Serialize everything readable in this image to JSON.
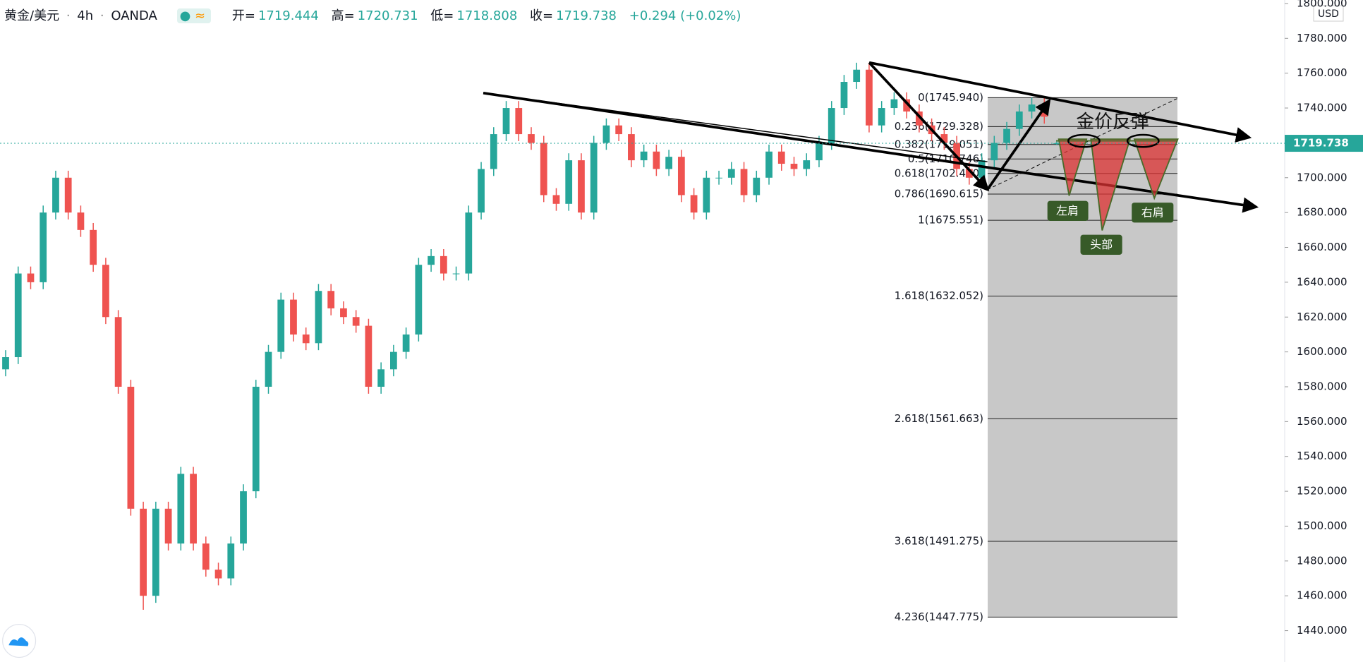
{
  "header": {
    "symbol": "黄金/美元",
    "interval": "4h",
    "exchange": "OANDA",
    "open_label": "开=",
    "high_label": "高=",
    "low_label": "低=",
    "close_label": "收=",
    "change": "+0.294 (+0.02%)"
  },
  "chart_data": {
    "type": "candlestick",
    "currency": "USD",
    "colors": {
      "up": "#26a69a",
      "down": "#ef5350"
    },
    "series": {
      "open": [
        1590,
        1597,
        1645,
        1640,
        1680,
        1700,
        1680,
        1670,
        1650,
        1620,
        1580,
        1510,
        1460,
        1510,
        1490,
        1530,
        1490,
        1475,
        1470,
        1490,
        1520,
        1580,
        1600,
        1630,
        1610,
        1605,
        1635,
        1625,
        1620,
        1615,
        1580,
        1590,
        1600,
        1610,
        1650,
        1655,
        1645,
        1645,
        1680,
        1705,
        1725,
        1740,
        1725,
        1720,
        1690,
        1685,
        1710,
        1680,
        1720,
        1730,
        1725,
        1710,
        1715,
        1705,
        1712,
        1690,
        1680,
        1700,
        1700,
        1705,
        1690,
        1700,
        1715,
        1708,
        1705,
        1710,
        1720,
        1740,
        1755,
        1762,
        1730,
        1740,
        1745,
        1738,
        1730,
        1725,
        1720,
        1705,
        1700,
        1710,
        1720,
        1728,
        1738,
        1742,
        1719.444
      ],
      "high": [
        1601,
        1649,
        1649,
        1684,
        1704,
        1704,
        1684,
        1674,
        1654,
        1624,
        1584,
        1514,
        1514,
        1514,
        1534,
        1534,
        1494,
        1479,
        1494,
        1524,
        1584,
        1604,
        1634,
        1634,
        1614,
        1639,
        1639,
        1629,
        1624,
        1619,
        1594,
        1604,
        1614,
        1654,
        1659,
        1659,
        1649,
        1684,
        1709,
        1729,
        1744,
        1744,
        1729,
        1724,
        1694,
        1714,
        1714,
        1724,
        1734,
        1734,
        1729,
        1719,
        1719,
        1716,
        1716,
        1694,
        1704,
        1704,
        1709,
        1709,
        1704,
        1719,
        1719,
        1712,
        1714,
        1724,
        1744,
        1759,
        1766,
        1766,
        1744,
        1749,
        1749,
        1742,
        1734,
        1729,
        1724,
        1709,
        1714,
        1724,
        1732,
        1742,
        1746,
        1746,
        1720.731
      ],
      "low": [
        1586,
        1593,
        1636,
        1636,
        1676,
        1676,
        1666,
        1646,
        1616,
        1576,
        1506,
        1452,
        1456,
        1486,
        1486,
        1486,
        1471,
        1466,
        1466,
        1486,
        1516,
        1576,
        1596,
        1606,
        1601,
        1601,
        1621,
        1616,
        1611,
        1576,
        1576,
        1586,
        1596,
        1606,
        1646,
        1641,
        1641,
        1641,
        1676,
        1701,
        1721,
        1721,
        1716,
        1686,
        1681,
        1681,
        1676,
        1676,
        1716,
        1721,
        1706,
        1706,
        1701,
        1701,
        1686,
        1676,
        1676,
        1696,
        1696,
        1686,
        1686,
        1696,
        1704,
        1701,
        1701,
        1706,
        1716,
        1736,
        1751,
        1726,
        1726,
        1736,
        1734,
        1726,
        1721,
        1716,
        1701,
        1696,
        1696,
        1706,
        1716,
        1724,
        1734,
        1731,
        1718.808
      ],
      "close": [
        1597,
        1645,
        1640,
        1680,
        1700,
        1680,
        1670,
        1650,
        1620,
        1580,
        1510,
        1460,
        1510,
        1490,
        1530,
        1490,
        1475,
        1470,
        1490,
        1520,
        1580,
        1600,
        1630,
        1610,
        1605,
        1635,
        1625,
        1620,
        1615,
        1580,
        1590,
        1600,
        1610,
        1650,
        1655,
        1645,
        1645,
        1680,
        1705,
        1725,
        1740,
        1725,
        1720,
        1690,
        1685,
        1710,
        1680,
        1720,
        1730,
        1725,
        1710,
        1715,
        1705,
        1712,
        1690,
        1680,
        1700,
        1700,
        1705,
        1690,
        1700,
        1715,
        1708,
        1705,
        1710,
        1720,
        1740,
        1755,
        1762,
        1730,
        1740,
        1745,
        1738,
        1730,
        1725,
        1720,
        1705,
        1700,
        1710,
        1720,
        1728,
        1738,
        1742,
        1735,
        1719.738
      ]
    },
    "ylim": [
      1422,
      1802
    ],
    "yticks": [
      {
        "value": 1440,
        "label": "1440.000"
      },
      {
        "value": 1460,
        "label": "1460.000"
      },
      {
        "value": 1480,
        "label": "1480.000"
      },
      {
        "value": 1500,
        "label": "1500.000"
      },
      {
        "value": 1520,
        "label": "1520.000"
      },
      {
        "value": 1540,
        "label": "1540.000"
      },
      {
        "value": 1560,
        "label": "1560.000"
      },
      {
        "value": 1580,
        "label": "1580.000"
      },
      {
        "value": 1600,
        "label": "1600.000"
      },
      {
        "value": 1620,
        "label": "1620.000"
      },
      {
        "value": 1640,
        "label": "1640.000"
      },
      {
        "value": 1660,
        "label": "1660.000"
      },
      {
        "value": 1680,
        "label": "1680.000"
      },
      {
        "value": 1700,
        "label": "1700.000"
      },
      {
        "value": 1720,
        "label": "1720.000"
      },
      {
        "value": 1740,
        "label": "1740.000"
      },
      {
        "value": 1760,
        "label": "1760.000"
      },
      {
        "value": 1780,
        "label": "1780.000"
      },
      {
        "value": 1800,
        "label": "1800.000"
      }
    ],
    "fib_levels": [
      {
        "value": 1745.94,
        "label": "0(1745.940)"
      },
      {
        "value": 1729.328,
        "label": "0.236(1729.328)"
      },
      {
        "value": 1719.051,
        "label": "0.382(1719.051)"
      },
      {
        "value": 1710.746,
        "label": "0.5(1710.746)"
      },
      {
        "value": 1702.44,
        "label": "0.618(1702.440)"
      },
      {
        "value": 1690.615,
        "label": "0.786(1690.615)"
      },
      {
        "value": 1675.551,
        "label": "1(1675.551)"
      },
      {
        "value": 1632.052,
        "label": "1.618(1632.052)"
      },
      {
        "value": 1561.663,
        "label": "2.618(1561.663)"
      },
      {
        "value": 1491.275,
        "label": "3.618(1491.275)"
      },
      {
        "value": 1447.775,
        "label": "4.236(1447.775)"
      }
    ],
    "annotations": {
      "title": "金价反弹",
      "left_shoulder": "左肩",
      "head": "头部",
      "right_shoulder": "右肩"
    }
  }
}
